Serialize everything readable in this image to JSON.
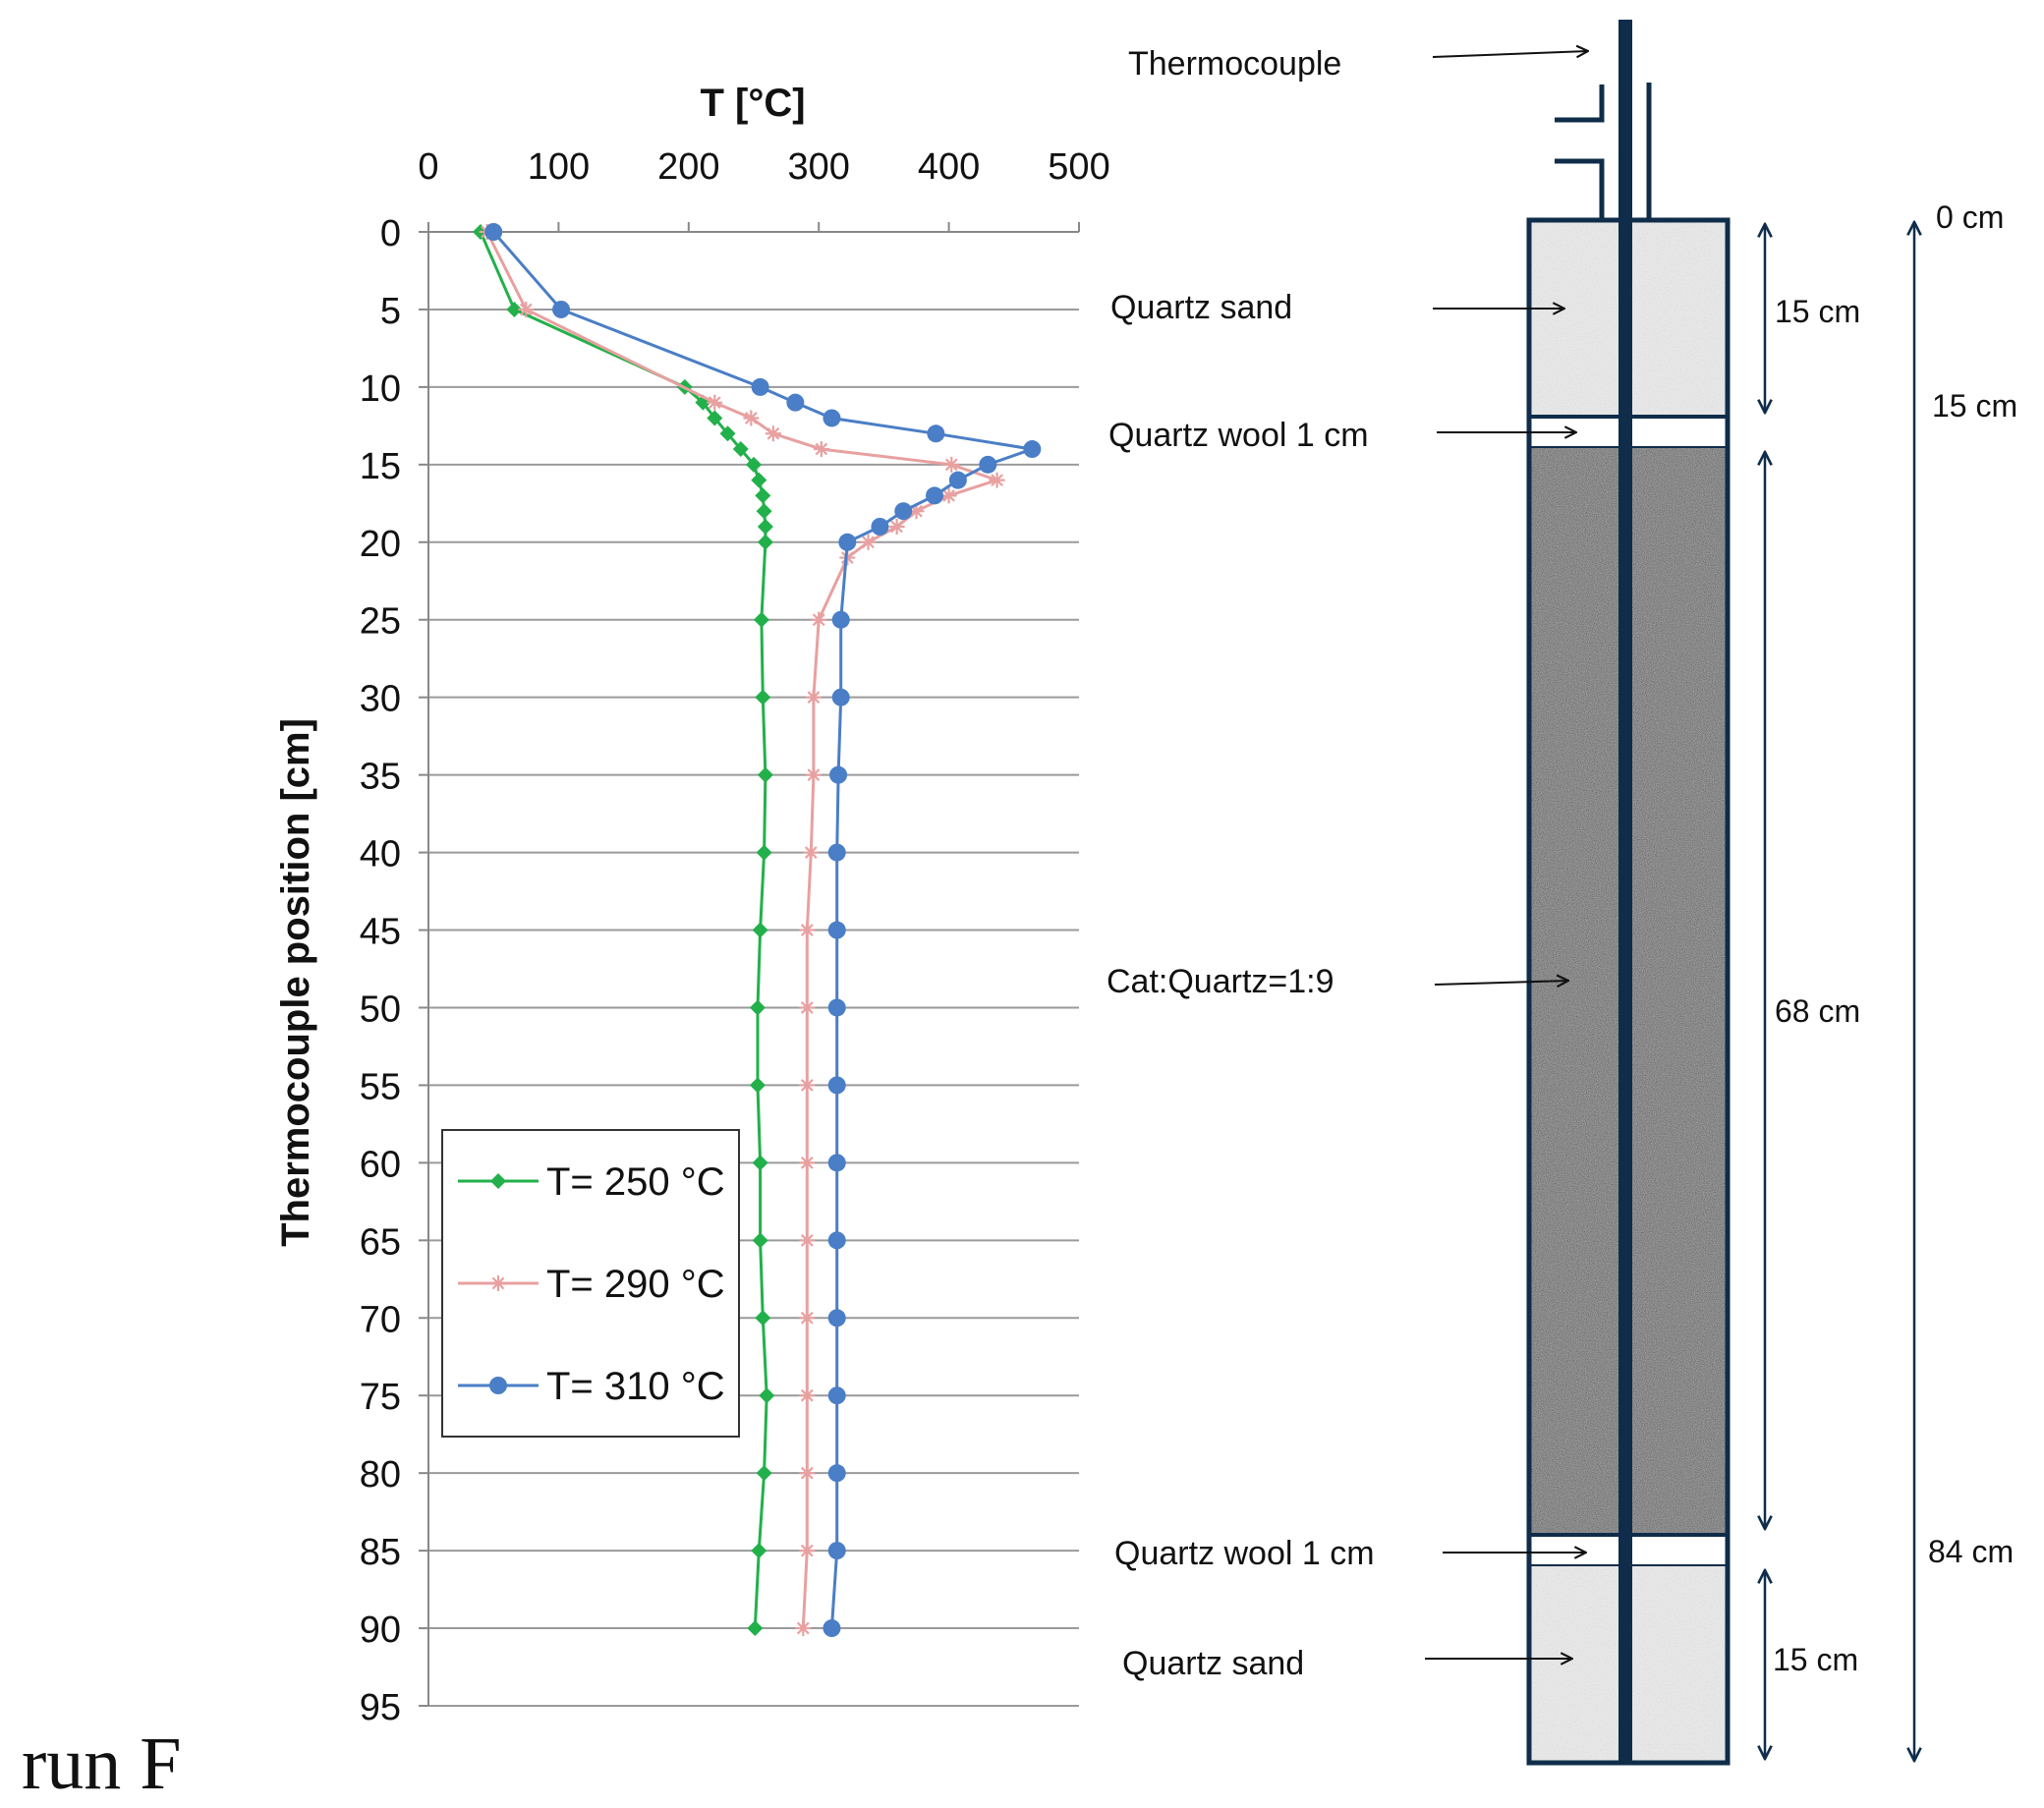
{
  "figure_label": "run F",
  "chart_data": {
    "type": "line",
    "title": "",
    "xlabel": "T [°C]",
    "ylabel": "Thermocouple position [cm]",
    "xlim": [
      0,
      500
    ],
    "ylim": [
      0,
      95
    ],
    "x_axis_position": "top",
    "y_axis_inverted": true,
    "grid": "horizontal",
    "x_ticks": [
      0,
      100,
      200,
      300,
      400,
      500
    ],
    "y_ticks": [
      0,
      5,
      10,
      15,
      20,
      25,
      30,
      35,
      40,
      45,
      50,
      55,
      60,
      65,
      70,
      75,
      80,
      85,
      90,
      95
    ],
    "legend": {
      "position": "bottom-left",
      "entries": [
        "T= 250 °C",
        "T= 290 °C",
        "T= 310 °C"
      ]
    },
    "series": [
      {
        "name": "T= 250 °C",
        "color": "#22b04b",
        "marker": "diamond",
        "points": [
          [
            40,
            0
          ],
          [
            66,
            5
          ],
          [
            197,
            10
          ],
          [
            211,
            11
          ],
          [
            220,
            12
          ],
          [
            230,
            13
          ],
          [
            240,
            14
          ],
          [
            250,
            15
          ],
          [
            254,
            16
          ],
          [
            257,
            17
          ],
          [
            258,
            18
          ],
          [
            259,
            19
          ],
          [
            259,
            20
          ],
          [
            256,
            25
          ],
          [
            257,
            30
          ],
          [
            259,
            35
          ],
          [
            258,
            40
          ],
          [
            255,
            45
          ],
          [
            253,
            50
          ],
          [
            253,
            55
          ],
          [
            255,
            60
          ],
          [
            255,
            65
          ],
          [
            257,
            70
          ],
          [
            260,
            75
          ],
          [
            258,
            80
          ],
          [
            254,
            85
          ],
          [
            251,
            90
          ]
        ]
      },
      {
        "name": "T= 290 °C",
        "color": "#e8a0a0",
        "marker": "star",
        "points": [
          [
            45,
            0
          ],
          [
            75,
            5
          ],
          [
            220,
            11
          ],
          [
            248,
            12
          ],
          [
            265,
            13
          ],
          [
            302,
            14
          ],
          [
            402,
            15
          ],
          [
            437,
            16
          ],
          [
            400,
            17
          ],
          [
            375,
            18
          ],
          [
            360,
            19
          ],
          [
            338,
            20
          ],
          [
            322,
            21
          ],
          [
            300,
            25
          ],
          [
            296,
            30
          ],
          [
            296,
            35
          ],
          [
            294,
            40
          ],
          [
            291,
            45
          ],
          [
            291,
            50
          ],
          [
            291,
            55
          ],
          [
            291,
            60
          ],
          [
            291,
            65
          ],
          [
            291,
            70
          ],
          [
            291,
            75
          ],
          [
            291,
            80
          ],
          [
            291,
            85
          ],
          [
            288,
            90
          ]
        ]
      },
      {
        "name": "T= 310 °C",
        "color": "#4a7ec6",
        "marker": "circle",
        "points": [
          [
            50,
            0
          ],
          [
            102,
            5
          ],
          [
            255,
            10
          ],
          [
            282,
            11
          ],
          [
            310,
            12
          ],
          [
            390,
            13
          ],
          [
            464,
            14
          ],
          [
            430,
            15
          ],
          [
            407,
            16
          ],
          [
            389,
            17
          ],
          [
            365,
            18
          ],
          [
            347,
            19
          ],
          [
            322,
            20
          ],
          [
            317,
            25
          ],
          [
            317,
            30
          ],
          [
            315,
            35
          ],
          [
            314,
            40
          ],
          [
            314,
            45
          ],
          [
            314,
            50
          ],
          [
            314,
            55
          ],
          [
            314,
            60
          ],
          [
            314,
            65
          ],
          [
            314,
            70
          ],
          [
            314,
            75
          ],
          [
            314,
            80
          ],
          [
            314,
            85
          ],
          [
            310,
            90
          ]
        ]
      }
    ]
  },
  "diagram": {
    "labels": {
      "thermocouple": "Thermocouple",
      "quartz_sand_top": "Quartz sand",
      "quartz_wool_top": "Quartz wool 1 cm",
      "catalyst_bed": "Cat:Quartz=1:9",
      "quartz_wool_bottom": "Quartz wool 1 cm",
      "quartz_sand_bottom": "Quartz sand"
    },
    "dimensions": {
      "top_sand": "15 cm",
      "catalyst": "68 cm",
      "bottom_sand": "15 cm",
      "pos_0": "0 cm",
      "pos_15": "15 cm",
      "pos_84": "84 cm"
    },
    "colors": {
      "frame": "#0f2d4a",
      "sand": "#e8e8e8",
      "catalyst": "#9a9a9a"
    }
  }
}
